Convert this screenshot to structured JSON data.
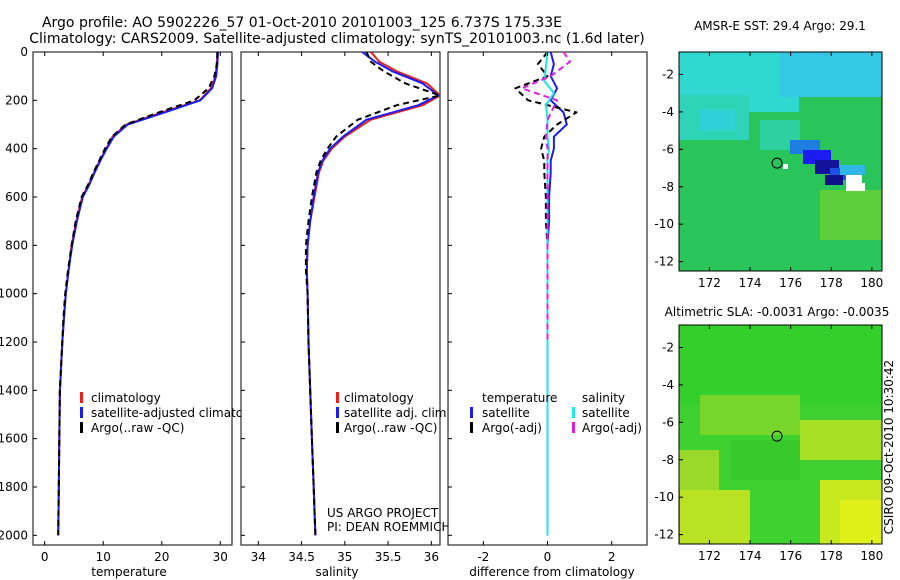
{
  "title": {
    "line1": "Argo profile: AO 5902226_57 01-Oct-2010 20101003_125 6.737S 175.33E",
    "line2": "Climatology: CARS2009. Satellite-adjusted climatology: synTS_20101003.nc (1.6d later)"
  },
  "side_label": "CSIRO 09-Oct-2010 10:30:42",
  "colors": {
    "red": "#e8211a",
    "blue": "#1c1cf0",
    "black": "#000000",
    "cyan": "#22e5e5",
    "magenta": "#e020e0"
  },
  "chart_data": [
    {
      "id": "temperature",
      "type": "line",
      "xlabel": "temperature",
      "ylabel": "",
      "xlim": [
        -2,
        32
      ],
      "ylim": [
        2040,
        0
      ],
      "xticks": [
        0,
        10,
        20,
        30
      ],
      "xtick_labels": [
        "0",
        "10",
        "20",
        "30"
      ],
      "yticks": [
        0,
        200,
        400,
        600,
        800,
        1000,
        1200,
        1400,
        1600,
        1800,
        2000
      ],
      "ytick_labels": [
        "0",
        "200",
        "400",
        "600",
        "800",
        "1000",
        "1200",
        "1400",
        "1600",
        "1800",
        "2000"
      ],
      "legend": {
        "position": "lower-right",
        "entries": [
          {
            "label": "climatology",
            "color": "red"
          },
          {
            "label": "satellite-adjusted climatology",
            "color": "blue"
          },
          {
            "label": "Argo(..raw -QC)",
            "color": "black"
          }
        ]
      },
      "series": [
        {
          "name": "climatology",
          "color": "red",
          "dash": "",
          "x": [
            29.5,
            29.4,
            29.2,
            28.4,
            26.5,
            20,
            14,
            11.6,
            10.5,
            9.4,
            8.4,
            7.5,
            6.4,
            5.4,
            4.6,
            4.1,
            3.6,
            3.3,
            3.0,
            2.8,
            2.6,
            2.5,
            2.4,
            2.3
          ],
          "y": [
            0,
            50,
            100,
            150,
            200,
            250,
            300,
            350,
            400,
            450,
            500,
            550,
            600,
            700,
            800,
            900,
            1000,
            1100,
            1200,
            1300,
            1400,
            1600,
            1800,
            2000
          ]
        },
        {
          "name": "satellite-adjusted climatology",
          "color": "blue",
          "dash": "",
          "x": [
            29.6,
            29.5,
            29.3,
            28.6,
            26.6,
            20.5,
            14.2,
            11.8,
            10.6,
            9.5,
            8.5,
            7.6,
            6.5,
            5.5,
            4.7,
            4.1,
            3.6,
            3.3,
            3.0,
            2.8,
            2.6,
            2.5,
            2.4,
            2.3
          ],
          "y": [
            0,
            50,
            100,
            150,
            200,
            250,
            300,
            350,
            400,
            450,
            500,
            550,
            600,
            700,
            800,
            900,
            1000,
            1100,
            1200,
            1300,
            1400,
            1600,
            1800,
            2000
          ]
        },
        {
          "name": "Argo(..raw -QC)",
          "color": "black",
          "dash": "6,4",
          "x": [
            29.5,
            29.4,
            29.0,
            28.0,
            25.6,
            19.5,
            13.8,
            11.5,
            10.3,
            9.3,
            8.3,
            7.4,
            6.3,
            5.3,
            4.6,
            4.0,
            3.5,
            3.2,
            3.0,
            2.8,
            2.6,
            2.5,
            2.4,
            2.3
          ],
          "y": [
            0,
            50,
            100,
            150,
            200,
            250,
            300,
            350,
            400,
            450,
            500,
            550,
            600,
            700,
            800,
            900,
            1000,
            1100,
            1200,
            1300,
            1400,
            1600,
            1800,
            2000
          ]
        }
      ]
    },
    {
      "id": "salinity",
      "type": "line",
      "xlabel": "salinity",
      "xlim": [
        33.8,
        36.1
      ],
      "ylim": [
        2040,
        0
      ],
      "xticks": [
        34,
        34.5,
        35,
        35.5,
        36
      ],
      "xtick_labels": [
        "34",
        "34.5",
        "35",
        "35.5",
        "36"
      ],
      "legend": {
        "position": "lower-right",
        "entries": [
          {
            "label": "climatology",
            "color": "red"
          },
          {
            "label": "satellite adj. clim.",
            "color": "blue"
          },
          {
            "label": "Argo(..raw -QC)",
            "color": "black"
          }
        ]
      },
      "annotation": [
        "US ARGO PROJECT",
        "PI: DEAN ROEMMICH"
      ],
      "series": [
        {
          "name": "climatology",
          "color": "red",
          "dash": "",
          "x": [
            35.3,
            35.4,
            35.6,
            35.95,
            36.1,
            35.9,
            35.3,
            35.0,
            34.85,
            34.75,
            34.7,
            34.65,
            34.6,
            34.57,
            34.56,
            34.57,
            34.58,
            34.6,
            34.62,
            34.63,
            34.64,
            34.65,
            34.66
          ],
          "y": [
            0,
            40,
            80,
            130,
            180,
            220,
            280,
            350,
            400,
            450,
            500,
            600,
            700,
            800,
            900,
            1000,
            1200,
            1400,
            1600,
            1700,
            1800,
            1900,
            2000
          ]
        },
        {
          "name": "satellite adj. clim.",
          "color": "blue",
          "dash": "",
          "x": [
            35.2,
            35.35,
            35.55,
            35.9,
            36.08,
            35.85,
            35.25,
            34.98,
            34.83,
            34.74,
            34.69,
            34.64,
            34.6,
            34.57,
            34.56,
            34.57,
            34.58,
            34.6,
            34.62,
            34.63,
            34.64,
            34.65,
            34.66
          ],
          "y": [
            0,
            40,
            80,
            130,
            180,
            220,
            280,
            350,
            400,
            450,
            500,
            600,
            700,
            800,
            900,
            1000,
            1200,
            1400,
            1600,
            1700,
            1800,
            1900,
            2000
          ]
        },
        {
          "name": "Argo(..raw -QC)",
          "color": "black",
          "dash": "6,4",
          "x": [
            35.25,
            35.3,
            35.45,
            35.7,
            36.1,
            35.6,
            35.15,
            34.9,
            34.8,
            34.72,
            34.67,
            34.62,
            34.58,
            34.55,
            34.55,
            34.57,
            34.58,
            34.6,
            34.62,
            34.63,
            34.64,
            34.65,
            34.66
          ],
          "y": [
            0,
            40,
            80,
            130,
            180,
            220,
            280,
            350,
            400,
            450,
            500,
            600,
            700,
            800,
            900,
            1000,
            1200,
            1400,
            1600,
            1700,
            1800,
            1900,
            2000
          ]
        }
      ]
    },
    {
      "id": "difference",
      "type": "line",
      "xlabel": "difference from climatology",
      "xlim": [
        -3.1,
        3.1
      ],
      "ylim": [
        2040,
        0
      ],
      "xticks": [
        -2,
        0,
        2
      ],
      "xtick_labels": [
        "-2",
        "0",
        "2"
      ],
      "legend": {
        "position": "lower-center",
        "columns": [
          {
            "header": "temperature",
            "entries": [
              {
                "label": "satellite",
                "color": "blue"
              },
              {
                "label": "Argo(-adj)",
                "color": "black"
              }
            ]
          },
          {
            "header": "salinity",
            "entries": [
              {
                "label": "satellite",
                "color": "cyan"
              },
              {
                "label": "Argo(-adj)",
                "color": "magenta"
              }
            ]
          }
        ]
      },
      "series": [
        {
          "name": "temperature satellite",
          "color": "blue",
          "dash": "",
          "x": [
            0.1,
            0.2,
            0.1,
            0.3,
            0.1,
            0.5,
            0.6,
            0.2,
            0.2,
            0.1,
            0.1,
            0.05,
            0.05,
            0.0,
            0.0,
            0.0,
            0.0,
            0.0,
            0.0
          ],
          "y": [
            0,
            50,
            100,
            150,
            200,
            250,
            300,
            350,
            400,
            450,
            500,
            600,
            700,
            800,
            1000,
            1200,
            1500,
            1800,
            2000
          ]
        },
        {
          "name": "temperature Argo(-adj)",
          "color": "black",
          "dash": "6,4",
          "x": [
            0.0,
            -0.3,
            0.0,
            -1.0,
            -0.6,
            0.9,
            0.3,
            -0.1,
            -0.2,
            -0.1,
            -0.1,
            -0.05,
            -0.05,
            0.0,
            0.0,
            0.0,
            0.0,
            0.0,
            0.0
          ],
          "y": [
            0,
            50,
            100,
            150,
            200,
            250,
            300,
            350,
            400,
            450,
            500,
            600,
            700,
            800,
            1000,
            1200,
            1500,
            1800,
            2000
          ]
        },
        {
          "name": "salinity satellite",
          "color": "cyan",
          "dash": "",
          "x": [
            0.0,
            -0.05,
            -0.1,
            0.2,
            -0.05,
            0.0,
            0.0,
            0.05,
            0.0,
            0.0,
            0.0,
            0.0,
            0.0,
            0.0,
            0.0,
            0.0,
            0.0,
            0.0
          ],
          "y": [
            0,
            60,
            120,
            170,
            220,
            280,
            350,
            400,
            450,
            500,
            600,
            700,
            800,
            1000,
            1200,
            1500,
            1800,
            2000
          ]
        },
        {
          "name": "salinity Argo(-adj)",
          "color": "magenta",
          "dash": "6,4",
          "x": [
            0.5,
            0.7,
            0.1,
            -0.8,
            0.3,
            0.0,
            -0.05,
            0.0,
            0.0,
            0.0,
            0.0,
            0.0,
            0.0,
            0.0
          ],
          "y": [
            0,
            40,
            100,
            150,
            200,
            280,
            350,
            400,
            450,
            500,
            600,
            800,
            1000,
            1200
          ]
        }
      ]
    },
    {
      "id": "sst-map",
      "type": "heatmap",
      "title": "AMSR-E SST: 29.4 Argo: 29.1",
      "xlim": [
        170.5,
        180.5
      ],
      "ylim": [
        -12.5,
        -0.8
      ],
      "xticks": [
        172,
        174,
        176,
        178,
        180
      ],
      "xtick_labels": [
        "172",
        "174",
        "176",
        "178",
        "180"
      ],
      "yticks": [
        -2,
        -4,
        -6,
        -8,
        -10,
        -12
      ],
      "ytick_labels": [
        "-2",
        "-4",
        "-6",
        "-8",
        "-10",
        "-12"
      ],
      "marker": {
        "lon": 175.33,
        "lat": -6.737
      }
    },
    {
      "id": "sla-map",
      "type": "heatmap",
      "title": "Altimetric SLA: -0.0031 Argo: -0.0035",
      "xlim": [
        170.5,
        180.5
      ],
      "ylim": [
        -12.5,
        -0.8
      ],
      "xticks": [
        172,
        174,
        176,
        178,
        180
      ],
      "xtick_labels": [
        "172",
        "174",
        "176",
        "178",
        "180"
      ],
      "yticks": [
        -2,
        -4,
        -6,
        -8,
        -10,
        -12
      ],
      "ytick_labels": [
        "-2",
        "-4",
        "-6",
        "-8",
        "-10",
        "-12"
      ],
      "marker": {
        "lon": 175.33,
        "lat": -6.737
      }
    }
  ]
}
